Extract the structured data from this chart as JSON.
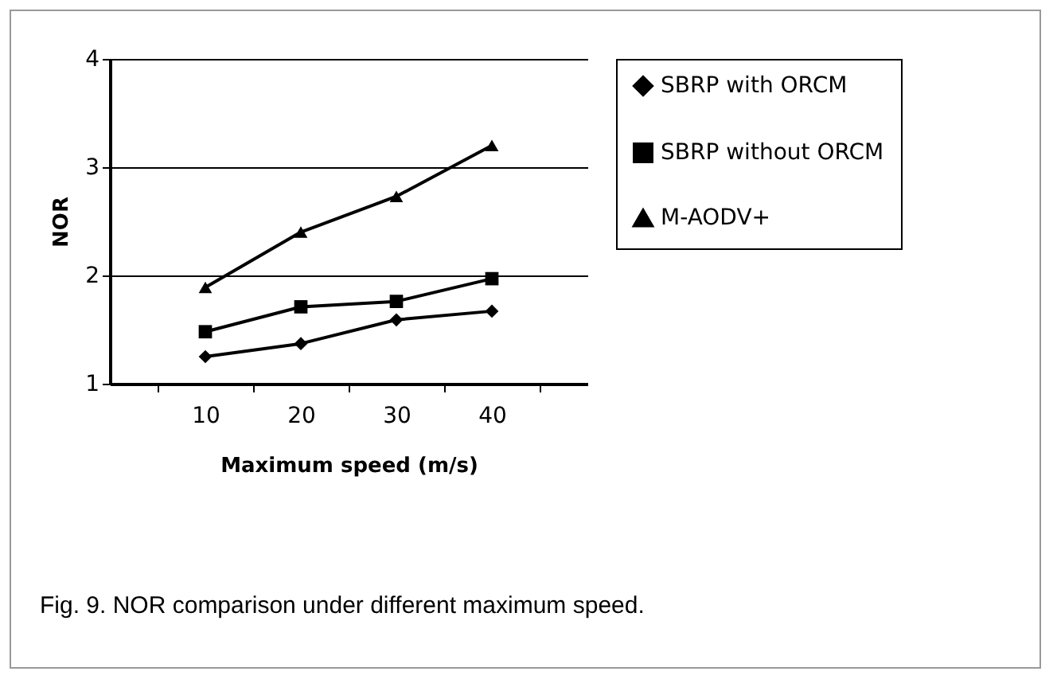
{
  "chart_data": {
    "type": "line",
    "xlabel": "Maximum speed (m/s)",
    "ylabel": "NOR",
    "categories": [
      "10",
      "20",
      "30",
      "40"
    ],
    "series": [
      {
        "name": "SBRP with ORCM",
        "color": "#000000",
        "marker": "diamond",
        "values": [
          1.25,
          1.37,
          1.59,
          1.67
        ]
      },
      {
        "name": "SBRP without ORCM",
        "color": "#000000",
        "marker": "square",
        "values": [
          1.48,
          1.71,
          1.76,
          1.97
        ]
      },
      {
        "name": "M-AODV+",
        "color": "#000000",
        "marker": "triangle",
        "values": [
          1.89,
          2.4,
          2.73,
          3.2
        ]
      }
    ],
    "ylim": [
      1,
      4
    ],
    "yticks": [
      1,
      2,
      3,
      4
    ],
    "grid": "y",
    "legend": "right",
    "line_style": "solid",
    "annotations": [
      "Fig. 9. NOR comparison under different maximum speed."
    ]
  }
}
